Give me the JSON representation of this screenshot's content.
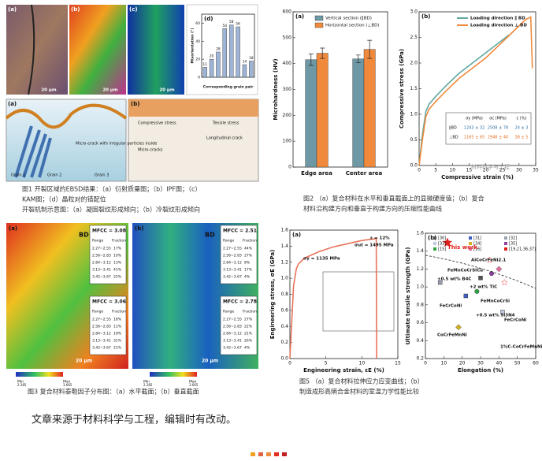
{
  "chart_data": [
    {
      "type": "bar",
      "label": "(d)",
      "ylabel": "Misorientation (°)",
      "xlabel": "Corresponding grain pair",
      "categories": [
        null,
        null,
        null,
        null,
        null,
        null,
        null,
        null
      ],
      "values": [
        11,
        20,
        28,
        54,
        58,
        56,
        14,
        18
      ],
      "color": "#9db4d6",
      "data_labels": true,
      "ylim": [
        0,
        70
      ],
      "yticks": [
        0,
        20,
        40,
        60
      ]
    },
    {
      "type": "bar",
      "label": "(a)",
      "ylabel": "Microhardness (HV)",
      "categories": [
        "Edge area",
        "Center area"
      ],
      "series": [
        {
          "name": "Vertical section (∥BD)",
          "color": "#6f98a6",
          "values": [
            415,
            418
          ],
          "errors": [
            22,
            15
          ]
        },
        {
          "name": "Horizontal section (⊥BD)",
          "color": "#f0893c",
          "values": [
            440,
            455
          ],
          "errors": [
            20,
            35
          ]
        }
      ],
      "ylim": [
        0,
        600
      ],
      "yticks": [
        0,
        100,
        200,
        300,
        400,
        500,
        600
      ]
    },
    {
      "type": "line",
      "label": "(b)",
      "ylabel": "Compressive stress (GPa)",
      "xlabel": "Compressive strain (%)",
      "xlim": [
        0,
        35
      ],
      "xticks": [
        0,
        5,
        10,
        15,
        20,
        25,
        30,
        35
      ],
      "ylim": [
        0,
        3
      ],
      "yticks": [
        {
          "value": 0,
          "label": "0.0"
        },
        0.5,
        {
          "value": 1,
          "label": "1.0"
        },
        1.5,
        {
          "value": 2,
          "label": "2.0"
        },
        2.5,
        {
          "value": 3,
          "label": "3.0"
        }
      ],
      "series": [
        {
          "name": "Loading direction ∥ BD",
          "color": "#5fa8a0",
          "x": [
            0,
            1,
            2,
            3,
            5,
            8,
            12,
            16,
            20,
            24,
            27
          ],
          "values": [
            0,
            0.6,
            1.05,
            1.2,
            1.35,
            1.55,
            1.8,
            2,
            2.2,
            2.4,
            2.55
          ]
        },
        {
          "name": "Loading direction ⊥ BD",
          "color": "#f0893c",
          "x": [
            0,
            1,
            2,
            3,
            5,
            8,
            12,
            16,
            20,
            24,
            28,
            32,
            33.5,
            34
          ],
          "values": [
            0,
            0.5,
            0.95,
            1.1,
            1.25,
            1.45,
            1.7,
            1.9,
            2.1,
            2.35,
            2.6,
            2.85,
            2.9,
            1.9
          ]
        }
      ]
    },
    {
      "type": "line",
      "label": "(a)",
      "ylabel": "Engineering stress, σE (GPa)",
      "xlabel": "Engineering strain, εE (%)",
      "xlim": [
        0,
        15
      ],
      "xticks": [
        0,
        5,
        10,
        15
      ],
      "ylim": [
        0,
        1.6
      ],
      "yticks": [
        {
          "value": 0,
          "label": "0.0"
        },
        0.2,
        0.4,
        0.6,
        0.8,
        {
          "value": 1,
          "label": "1.0"
        },
        1.2,
        1.4,
        1.6
      ],
      "annotations": [
        "ε = 12%",
        "σut = 1495 MPa",
        "σy = 1135 MPa"
      ],
      "series": [
        {
          "color": "#e8735a",
          "x": [
            0,
            0.5,
            0.9,
            1.2,
            2,
            4,
            6,
            8,
            10,
            12,
            12.05
          ],
          "values": [
            0,
            0.9,
            1.12,
            1.18,
            1.25,
            1.33,
            1.39,
            1.43,
            1.47,
            1.495,
            0
          ]
        }
      ]
    },
    {
      "type": "scatter",
      "label": "(b)",
      "ylabel": "Ultimate tensile strength (GPa)",
      "xlabel": "Elongation (%)",
      "xlim": [
        0,
        60
      ],
      "xticks": [
        0,
        10,
        20,
        30,
        40,
        50,
        60
      ],
      "ylim": [
        0.2,
        1.6
      ],
      "yticks": [
        0.2,
        0.4,
        0.6,
        0.8,
        {
          "value": 1,
          "label": "1.0"
        },
        1.2,
        1.4,
        1.6
      ],
      "annotations": [
        "This work",
        "AlCoCrFeNi2.1",
        "FeMnCoCrSiCu",
        "+0.5 wt% B4C",
        "+2 wt% TiC",
        "FeMnCoCrSi",
        "FeCrCoNi",
        "+0.5 wt% Si3N4",
        "FeCrCoNi",
        "CoCrFeMnNi",
        "1%C-CoCrFeMnNi"
      ],
      "series": [
        {
          "name": "This work",
          "color": "#e0201b",
          "marker": "star",
          "x": [
            12
          ],
          "values": [
            1.495
          ]
        },
        {
          "name": "[30]",
          "color": "#555555",
          "marker": "square",
          "x": [
            30
          ],
          "values": [
            1.1
          ]
        },
        {
          "name": "[31]",
          "color": "#4060c0",
          "marker": "square",
          "x": [
            22
          ],
          "values": [
            0.9
          ]
        },
        {
          "name": "[32]",
          "color": "#9aa0b0",
          "marker": "square",
          "x": [
            8
          ],
          "values": [
            1.05
          ]
        },
        {
          "name": "[33]",
          "color": "#c0c8e0",
          "marker": "square",
          "x": [
            42
          ],
          "values": [
            0.72
          ]
        },
        {
          "name": "[34]",
          "color": "#d4b020",
          "marker": "diamond",
          "x": [
            18
          ],
          "values": [
            0.55
          ]
        },
        {
          "name": "[35]",
          "color": "#9040a0",
          "marker": "circle",
          "x": [
            36
          ],
          "values": [
            1.15
          ]
        },
        {
          "name": "[15]",
          "color": "#30a040",
          "marker": "circle",
          "x": [
            28
          ],
          "values": [
            0.95
          ]
        },
        {
          "name": "[16]",
          "color": "#e070a0",
          "marker": "diamond",
          "x": [
            40
          ],
          "values": [
            1.2
          ]
        },
        {
          "name": "[19,21,36,37]",
          "color": "#e0201b",
          "marker": "ostar",
          "x": [
            35,
            43
          ],
          "values": [
            1.3,
            1.05
          ]
        }
      ]
    }
  ],
  "figures": {
    "figure1": {
      "panel_labels": [
        "(a)",
        "(b)",
        "(c)",
        "(a)",
        "(b)"
      ],
      "scale": "20 μm",
      "notes": [
        "Grain 1",
        "Grain 2",
        "Grain 3",
        "Micro-crack with irregular particles inside",
        "Compressive stress",
        "Tensile stress",
        "Micro-cracks",
        "Longitudinal crack"
      ],
      "caption": [
        "图1 开裂区域的EBSD结果：（a）衍射质量图；（b）IPF图；（c）",
        "KAM图；（d）晶粒对的错配位",
        "开裂机制示意图：（a）凝固裂纹形成倾向；（b）冷裂纹形成倾向"
      ]
    },
    "figure2": {
      "table": {
        "header": [
          "σy (MPa)",
          "σc (MPa)",
          "ε (%)"
        ],
        "row_labels": [
          "∥BD",
          "⊥BD"
        ],
        "rows": [
          [
            "1243 ± 32",
            "2508 ± 78",
            "24 ± 3"
          ],
          [
            "1165 ± 65",
            "2948 ± 40",
            "38 ± 5"
          ]
        ]
      },
      "caption": [
        "图2 （a）复合材料在水平和垂直截面上的显微硬度值；（b）复合",
        "材料沿构建方向和垂直于构建方向的压缩性能曲线"
      ]
    },
    "figure3": {
      "panels": [
        {
          "label": "(a)",
          "direction": "BD",
          "tables": [
            {
              "title": "MFCC = 3.08",
              "header": [
                "Range",
                "Fraction"
              ],
              "rows": [
                [
                  "2.27~2.55",
                  "17%"
                ],
                [
                  "2.56~2.83",
                  "10%"
                ],
                [
                  "2.84~3.12",
                  "13%"
                ],
                [
                  "3.13~3.41",
                  "41%"
                ],
                [
                  "3.42~3.67",
                  "25%"
                ]
              ]
            },
            {
              "title": "MFCC = 3.06",
              "header": [
                "Range",
                "Fraction"
              ],
              "rows": [
                [
                  "2.27~2.55",
                  "18%"
                ],
                [
                  "2.56~2.83",
                  "11%"
                ],
                [
                  "2.84~3.12",
                  "19%"
                ],
                [
                  "3.13~3.41",
                  "31%"
                ],
                [
                  "3.42~3.67",
                  "21%"
                ]
              ]
            }
          ],
          "scale": "20 μm",
          "bar": [
            "Min",
            "Max"
          ],
          "bar_values": [
            "2.285",
            "3.665"
          ]
        },
        {
          "label": "(b)",
          "direction": "BD",
          "tables": [
            {
              "title": "MFCC = 2.51",
              "header": [
                "Range",
                "Fraction"
              ],
              "rows": [
                [
                  "2.27~2.55",
                  "44%"
                ],
                [
                  "2.56~2.83",
                  "27%"
                ],
                [
                  "2.84~3.12",
                  "8%"
                ],
                [
                  "3.13~3.41",
                  "17%"
                ],
                [
                  "3.42~3.67",
                  "4%"
                ]
              ]
            },
            {
              "title": "MFCC = 2.78",
              "header": [
                "Range",
                "Fraction"
              ],
              "rows": [
                [
                  "2.27~2.55",
                  "27%"
                ],
                [
                  "2.56~2.83",
                  "22%"
                ],
                [
                  "2.84~3.12",
                  "21%"
                ],
                [
                  "3.13~3.41",
                  "26%"
                ],
                [
                  "3.42~3.67",
                  "4%"
                ]
              ]
            }
          ],
          "scale": "20 μm",
          "bar": [
            "Min",
            "Max"
          ],
          "bar_values": [
            "2.285",
            "3.665"
          ]
        }
      ],
      "caption": [
        "图3 复合材料泰勒因子分布图：（a）水平截面；（b）垂直截面"
      ]
    },
    "figure5": {
      "caption": [
        "图5 （a）复合材料拉伸应力应变曲线；（b）",
        "制造成形高熵合金材料的室温力学性能比较"
      ]
    },
    "watermark": "材料科学与工程"
  },
  "footer": "文章来源于材料科学与工程，编辑时有改动。"
}
